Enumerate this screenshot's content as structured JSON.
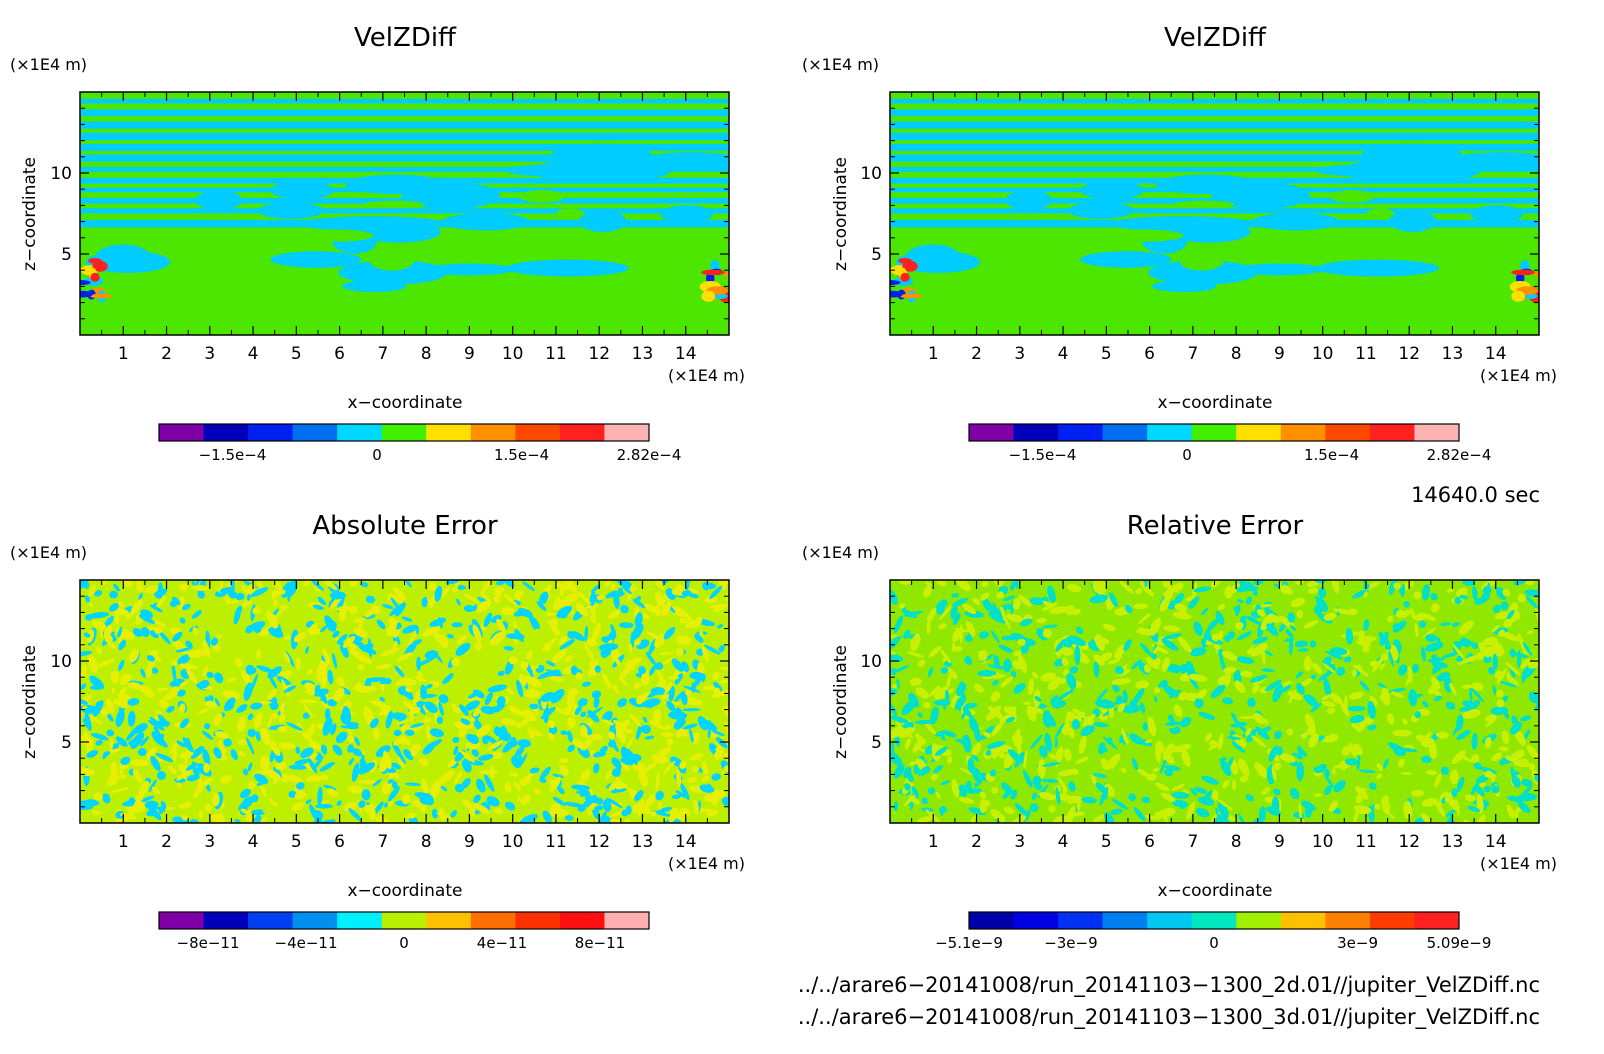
{
  "panels": [
    {
      "title": "VelZDiff",
      "xlabel": "x−coordinate",
      "ylabel": "z−coordinate",
      "x_unit": "(×1E4 m)",
      "y_unit": "(×1E4 m)",
      "x_ticks": [
        "1",
        "2",
        "3",
        "4",
        "5",
        "6",
        "7",
        "8",
        "9",
        "10",
        "11",
        "12",
        "13",
        "14"
      ],
      "y_ticks": [
        "5",
        "10"
      ],
      "pattern": "bands",
      "colors": [
        "#4ce600",
        "#00ccff"
      ],
      "colorbar": {
        "colors": [
          "#8000a8",
          "#0000b8",
          "#0020f0",
          "#0070f0",
          "#00d8ff",
          "#40f000",
          "#ffe000",
          "#ff9000",
          "#ff4800",
          "#ff2020",
          "#ffb4b4"
        ],
        "labels": [
          {
            "t": "−1.5e−4",
            "f": 0.15
          },
          {
            "t": "0",
            "f": 0.445
          },
          {
            "t": "1.5e−4",
            "f": 0.74
          },
          {
            "t": "2.82e−4",
            "f": 1.0
          }
        ]
      }
    },
    {
      "title": "VelZDiff",
      "xlabel": "x−coordinate",
      "ylabel": "z−coordinate",
      "x_unit": "(×1E4 m)",
      "y_unit": "(×1E4 m)",
      "x_ticks": [
        "1",
        "2",
        "3",
        "4",
        "5",
        "6",
        "7",
        "8",
        "9",
        "10",
        "11",
        "12",
        "13",
        "14"
      ],
      "y_ticks": [
        "5",
        "10"
      ],
      "pattern": "bands",
      "colors": [
        "#4ce600",
        "#00ccff"
      ],
      "colorbar": {
        "colors": [
          "#8000a8",
          "#0000b8",
          "#0020f0",
          "#0070f0",
          "#00d8ff",
          "#40f000",
          "#ffe000",
          "#ff9000",
          "#ff4800",
          "#ff2020",
          "#ffb4b4"
        ],
        "labels": [
          {
            "t": "−1.5e−4",
            "f": 0.15
          },
          {
            "t": "0",
            "f": 0.445
          },
          {
            "t": "1.5e−4",
            "f": 0.74
          },
          {
            "t": "2.82e−4",
            "f": 1.0
          }
        ]
      }
    },
    {
      "title": "Absolute Error",
      "xlabel": "x−coordinate",
      "ylabel": "z−coordinate",
      "x_unit": "(×1E4 m)",
      "y_unit": "(×1E4 m)",
      "x_ticks": [
        "1",
        "2",
        "3",
        "4",
        "5",
        "6",
        "7",
        "8",
        "9",
        "10",
        "11",
        "12",
        "13",
        "14"
      ],
      "y_ticks": [
        "5",
        "10"
      ],
      "pattern": "noise",
      "colors": [
        "#bdf000",
        "#00d4ff",
        "#e6f000"
      ],
      "colorbar": {
        "colors": [
          "#8000a8",
          "#0000b8",
          "#0040f0",
          "#0090f0",
          "#00f0ff",
          "#b8f000",
          "#ffc000",
          "#ff7000",
          "#ff3000",
          "#ff1010",
          "#ffb0b0"
        ],
        "labels": [
          {
            "t": "−8e−11",
            "f": 0.1
          },
          {
            "t": "−4e−11",
            "f": 0.3
          },
          {
            "t": "0",
            "f": 0.5
          },
          {
            "t": "4e−11",
            "f": 0.7
          },
          {
            "t": "8e−11",
            "f": 0.9
          }
        ]
      }
    },
    {
      "title": "Relative Error",
      "xlabel": "x−coordinate",
      "ylabel": "z−coordinate",
      "x_unit": "(×1E4 m)",
      "y_unit": "(×1E4 m)",
      "x_ticks": [
        "1",
        "2",
        "3",
        "4",
        "5",
        "6",
        "7",
        "8",
        "9",
        "10",
        "11",
        "12",
        "13",
        "14"
      ],
      "y_ticks": [
        "5",
        "10"
      ],
      "pattern": "noise2",
      "colors": [
        "#90e800",
        "#00e0c8",
        "#c8f000"
      ],
      "colorbar": {
        "colors": [
          "#0000a8",
          "#0000e0",
          "#0030f0",
          "#0080f0",
          "#00c8f0",
          "#00e8c0",
          "#a0f000",
          "#ffc000",
          "#ff8000",
          "#ff3c00",
          "#ff2020"
        ],
        "labels": [
          {
            "t": "−5.1e−9",
            "f": 0.0
          },
          {
            "t": "−3e−9",
            "f": 0.208
          },
          {
            "t": "0",
            "f": 0.5
          },
          {
            "t": "3e−9",
            "f": 0.793
          },
          {
            "t": "5.09e−9",
            "f": 1.0
          }
        ]
      }
    }
  ],
  "chart_data": [
    {
      "type": "heatmap",
      "title": "VelZDiff",
      "xlabel": "x−coordinate",
      "ylabel": "z−coordinate",
      "xlim": [
        0,
        15
      ],
      "ylim": [
        0,
        15
      ],
      "colorbar_range": [
        -0.00015,
        0.000282
      ]
    },
    {
      "type": "heatmap",
      "title": "VelZDiff",
      "xlabel": "x−coordinate",
      "ylabel": "z−coordinate",
      "xlim": [
        0,
        15
      ],
      "ylim": [
        0,
        15
      ],
      "colorbar_range": [
        -0.00015,
        0.000282
      ]
    },
    {
      "type": "heatmap",
      "title": "Absolute Error",
      "xlabel": "x−coordinate",
      "ylabel": "z−coordinate",
      "xlim": [
        0,
        15
      ],
      "ylim": [
        0,
        15
      ],
      "colorbar_range": [
        -8e-11,
        8e-11
      ]
    },
    {
      "type": "heatmap",
      "title": "Relative Error",
      "xlabel": "x−coordinate",
      "ylabel": "z−coordinate",
      "xlim": [
        0,
        15
      ],
      "ylim": [
        0,
        15
      ],
      "colorbar_range": [
        -5.1e-09,
        5.09e-09
      ]
    }
  ],
  "time_label": "14640.0 sec",
  "files": [
    "../../arare6−20141008/run_20141103−1300_2d.01//jupiter_VelZDiff.nc",
    "../../arare6−20141008/run_20141103−1300_3d.01//jupiter_VelZDiff.nc"
  ]
}
